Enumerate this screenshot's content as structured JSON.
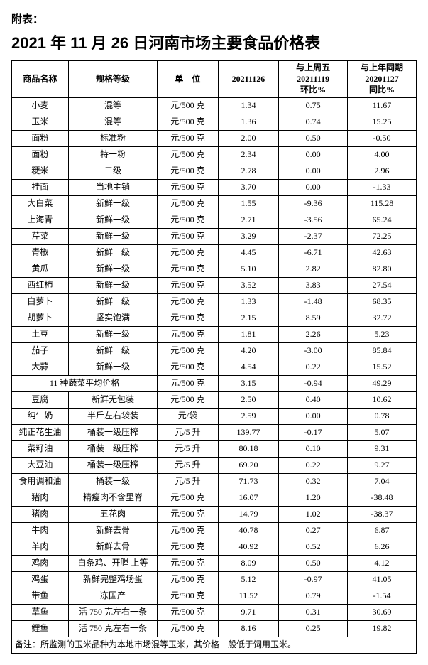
{
  "appendix_label": "附表：",
  "title": "2021 年 11 月 26 日河南市场主要食品价格表",
  "columns": {
    "name": "商品名称",
    "spec": "规格等级",
    "unit": "单　位",
    "price": "20211126",
    "wow": "与上周五\n20211119\n环比%",
    "yoy": "与上年同期\n20201127\n同比%"
  },
  "rows": [
    {
      "name": "小麦",
      "spec": "混等",
      "unit": "元/500 克",
      "price": "1.34",
      "wow": "0.75",
      "yoy": "11.67"
    },
    {
      "name": "玉米",
      "spec": "混等",
      "unit": "元/500 克",
      "price": "1.36",
      "wow": "0.74",
      "yoy": "15.25"
    },
    {
      "name": "面粉",
      "spec": "标准粉",
      "unit": "元/500 克",
      "price": "2.00",
      "wow": "0.50",
      "yoy": "-0.50"
    },
    {
      "name": "面粉",
      "spec": "特一粉",
      "unit": "元/500 克",
      "price": "2.34",
      "wow": "0.00",
      "yoy": "4.00"
    },
    {
      "name": "粳米",
      "spec": "二级",
      "unit": "元/500 克",
      "price": "2.78",
      "wow": "0.00",
      "yoy": "2.96"
    },
    {
      "name": "挂面",
      "spec": "当地主销",
      "unit": "元/500 克",
      "price": "3.70",
      "wow": "0.00",
      "yoy": "-1.33"
    },
    {
      "name": "大白菜",
      "spec": "新鲜一级",
      "unit": "元/500 克",
      "price": "1.55",
      "wow": "-9.36",
      "yoy": "115.28"
    },
    {
      "name": "上海青",
      "spec": "新鲜一级",
      "unit": "元/500 克",
      "price": "2.71",
      "wow": "-3.56",
      "yoy": "65.24"
    },
    {
      "name": "芹菜",
      "spec": "新鲜一级",
      "unit": "元/500 克",
      "price": "3.29",
      "wow": "-2.37",
      "yoy": "72.25"
    },
    {
      "name": "青椒",
      "spec": "新鲜一级",
      "unit": "元/500 克",
      "price": "4.45",
      "wow": "-6.71",
      "yoy": "42.63"
    },
    {
      "name": "黄瓜",
      "spec": "新鲜一级",
      "unit": "元/500 克",
      "price": "5.10",
      "wow": "2.82",
      "yoy": "82.80"
    },
    {
      "name": "西红柿",
      "spec": "新鲜一级",
      "unit": "元/500 克",
      "price": "3.52",
      "wow": "3.83",
      "yoy": "27.54"
    },
    {
      "name": "白萝卜",
      "spec": "新鲜一级",
      "unit": "元/500 克",
      "price": "1.33",
      "wow": "-1.48",
      "yoy": "68.35"
    },
    {
      "name": "胡萝卜",
      "spec": "坚实饱满",
      "unit": "元/500 克",
      "price": "2.15",
      "wow": "8.59",
      "yoy": "32.72"
    },
    {
      "name": "土豆",
      "spec": "新鲜一级",
      "unit": "元/500 克",
      "price": "1.81",
      "wow": "2.26",
      "yoy": "5.23"
    },
    {
      "name": "茄子",
      "spec": "新鲜一级",
      "unit": "元/500 克",
      "price": "4.20",
      "wow": "-3.00",
      "yoy": "85.84"
    },
    {
      "name": "大蒜",
      "spec": "新鲜一级",
      "unit": "元/500 克",
      "price": "4.54",
      "wow": "0.22",
      "yoy": "15.52"
    }
  ],
  "summary_row": {
    "label": "11 种蔬菜平均价格",
    "unit": "元/500 克",
    "price": "3.15",
    "wow": "-0.94",
    "yoy": "49.29"
  },
  "rows2": [
    {
      "name": "豆腐",
      "spec": "新鲜无包装",
      "unit": "元/500 克",
      "price": "2.50",
      "wow": "0.40",
      "yoy": "10.62"
    },
    {
      "name": "纯牛奶",
      "spec": "半斤左右袋装",
      "unit": "元/袋",
      "price": "2.59",
      "wow": "0.00",
      "yoy": "0.78"
    },
    {
      "name": "纯正花生油",
      "spec": "桶装一级压榨",
      "unit": "元/5 升",
      "price": "139.77",
      "wow": "-0.17",
      "yoy": "5.07"
    },
    {
      "name": "菜籽油",
      "spec": "桶装一级压榨",
      "unit": "元/5 升",
      "price": "80.18",
      "wow": "0.10",
      "yoy": "9.31"
    },
    {
      "name": "大豆油",
      "spec": "桶装一级压榨",
      "unit": "元/5 升",
      "price": "69.20",
      "wow": "0.22",
      "yoy": "9.27"
    },
    {
      "name": "食用调和油",
      "spec": "桶装一级",
      "unit": "元/5 升",
      "price": "71.73",
      "wow": "0.32",
      "yoy": "7.04"
    },
    {
      "name": "猪肉",
      "spec": "精瘦肉不含里脊",
      "unit": "元/500 克",
      "price": "16.07",
      "wow": "1.20",
      "yoy": "-38.48"
    },
    {
      "name": "猪肉",
      "spec": "五花肉",
      "unit": "元/500 克",
      "price": "14.79",
      "wow": "1.02",
      "yoy": "-38.37"
    },
    {
      "name": "牛肉",
      "spec": "新鲜去骨",
      "unit": "元/500 克",
      "price": "40.78",
      "wow": "0.27",
      "yoy": "6.87"
    },
    {
      "name": "羊肉",
      "spec": "新鲜去骨",
      "unit": "元/500 克",
      "price": "40.92",
      "wow": "0.52",
      "yoy": "6.26"
    },
    {
      "name": "鸡肉",
      "spec": "白条鸡、开膛 上等",
      "unit": "元/500 克",
      "price": "8.09",
      "wow": "0.50",
      "yoy": "4.12"
    },
    {
      "name": "鸡蛋",
      "spec": "新鲜完整鸡场蛋",
      "unit": "元/500 克",
      "price": "5.12",
      "wow": "-0.97",
      "yoy": "41.05"
    },
    {
      "name": "带鱼",
      "spec": "冻国产",
      "unit": "元/500 克",
      "price": "11.52",
      "wow": "0.79",
      "yoy": "-1.54"
    },
    {
      "name": "草鱼",
      "spec": "活 750 克左右一条",
      "unit": "元/500 克",
      "price": "9.71",
      "wow": "0.31",
      "yoy": "30.69"
    },
    {
      "name": "鲤鱼",
      "spec": "活 750 克左右一条",
      "unit": "元/500 克",
      "price": "8.16",
      "wow": "0.25",
      "yoy": "19.82"
    }
  ],
  "footnote": "备注：所监测的玉米品种为本地市场混等玉米，其价格一般低于饲用玉米。"
}
